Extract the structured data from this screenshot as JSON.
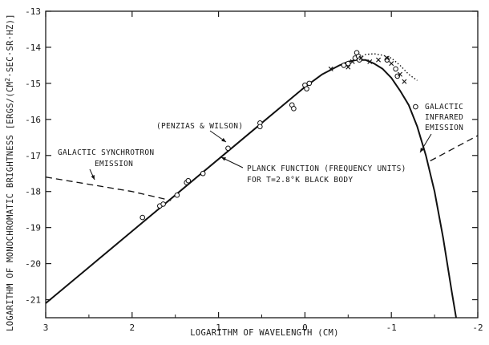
{
  "chart_data": {
    "type": "line",
    "title": "",
    "xlabel": "LOGARITHM OF WAVELENGTH (CM)",
    "ylabel_main": "LOGARITHM OF MONOCHROMATIC BRIGHTNESS ",
    "ylabel_unit_a": "[ERGS/(CM",
    "ylabel_unit_sup": "2",
    "ylabel_unit_b": "·SEC·SR·HZ)]",
    "xlim": [
      3,
      -2
    ],
    "ylim": [
      -21.5,
      -13
    ],
    "x_ticks": [
      3,
      2,
      1,
      0,
      -1,
      -2
    ],
    "x_tick_labels": [
      "3",
      "2",
      "1",
      "0",
      "-1",
      "-2"
    ],
    "y_ticks": [
      -13,
      -14,
      -15,
      -16,
      -17,
      -18,
      -19,
      -20,
      -21
    ],
    "y_tick_labels": [
      "-13",
      "-14",
      "-15",
      "-16",
      "-17",
      "-18",
      "-19",
      "-20",
      "-21"
    ],
    "series": [
      {
        "kind": "planck-curve",
        "points": [
          [
            3.0,
            -21.1
          ],
          [
            2.5,
            -20.1
          ],
          [
            2.0,
            -19.1
          ],
          [
            1.5,
            -18.1
          ],
          [
            1.0,
            -17.1
          ],
          [
            0.5,
            -16.1
          ],
          [
            0.2,
            -15.5
          ],
          [
            0.0,
            -15.1
          ],
          [
            -0.2,
            -14.75
          ],
          [
            -0.4,
            -14.5
          ],
          [
            -0.5,
            -14.4
          ],
          [
            -0.6,
            -14.35
          ],
          [
            -0.7,
            -14.35
          ],
          [
            -0.8,
            -14.45
          ],
          [
            -0.9,
            -14.6
          ],
          [
            -1.0,
            -14.85
          ],
          [
            -1.1,
            -15.2
          ],
          [
            -1.2,
            -15.6
          ],
          [
            -1.3,
            -16.2
          ],
          [
            -1.4,
            -17.0
          ],
          [
            -1.5,
            -18.0
          ],
          [
            -1.6,
            -19.3
          ],
          [
            -1.7,
            -20.8
          ],
          [
            -1.75,
            -21.5
          ]
        ]
      },
      {
        "kind": "galactic-synchrotron-dashed",
        "points": [
          [
            3.0,
            -17.6
          ],
          [
            2.0,
            -18.0
          ],
          [
            1.55,
            -18.25
          ]
        ]
      },
      {
        "kind": "galactic-infrared-dashed",
        "points": [
          [
            -1.45,
            -17.15
          ],
          [
            -2.0,
            -16.45
          ]
        ]
      },
      {
        "kind": "dotted-measurement",
        "points": [
          [
            -0.6,
            -14.35
          ],
          [
            -0.7,
            -14.2
          ],
          [
            -0.8,
            -14.18
          ],
          [
            -0.9,
            -14.22
          ],
          [
            -1.0,
            -14.3
          ],
          [
            -1.1,
            -14.5
          ],
          [
            -1.2,
            -14.75
          ],
          [
            -1.3,
            -14.92
          ]
        ]
      }
    ],
    "circle_points": [
      [
        1.88,
        -18.72
      ],
      [
        1.68,
        -18.4
      ],
      [
        1.64,
        -18.35
      ],
      [
        1.48,
        -18.1
      ],
      [
        1.37,
        -17.75
      ],
      [
        1.35,
        -17.7
      ],
      [
        1.18,
        -17.5
      ],
      [
        0.89,
        -16.8
      ],
      [
        0.52,
        -16.1
      ],
      [
        0.52,
        -16.2
      ],
      [
        0.15,
        -15.6
      ],
      [
        0.13,
        -15.7
      ],
      [
        0.0,
        -15.05
      ],
      [
        -0.02,
        -15.15
      ],
      [
        -0.05,
        -15.0
      ],
      [
        -0.45,
        -14.5
      ],
      [
        -0.5,
        -14.45
      ],
      [
        -0.58,
        -14.3
      ],
      [
        -0.6,
        -14.15
      ],
      [
        -0.62,
        -14.25
      ],
      [
        -0.63,
        -14.35
      ],
      [
        -0.95,
        -14.35
      ],
      [
        -1.05,
        -14.6
      ],
      [
        -1.07,
        -14.8
      ],
      [
        -1.28,
        -15.65
      ]
    ],
    "x_points": [
      [
        -0.3,
        -14.6
      ],
      [
        -0.5,
        -14.55
      ],
      [
        -0.55,
        -14.4
      ],
      [
        -0.65,
        -14.3
      ],
      [
        -0.75,
        -14.4
      ],
      [
        -0.85,
        -14.35
      ],
      [
        -0.95,
        -14.3
      ],
      [
        -1.0,
        -14.45
      ],
      [
        -1.1,
        -14.75
      ],
      [
        -1.15,
        -14.95
      ]
    ],
    "annotations": [
      {
        "id": "penzias",
        "text": "(PENZIAS & WILSON)"
      },
      {
        "id": "synch_line1",
        "text": "GALACTIC SYNCHROTRON"
      },
      {
        "id": "synch_line2",
        "text": "EMISSION"
      },
      {
        "id": "planck_line1",
        "text": "PLANCK FUNCTION (FREQUENCY UNITS)"
      },
      {
        "id": "planck_line2",
        "text": "FOR T=2.8°K  BLACK BODY"
      },
      {
        "id": "ir_line1",
        "text": "GALACTIC"
      },
      {
        "id": "ir_line2",
        "text": "INFRARED"
      },
      {
        "id": "ir_line3",
        "text": "EMISSION"
      }
    ],
    "grid": false,
    "legend": "none"
  }
}
